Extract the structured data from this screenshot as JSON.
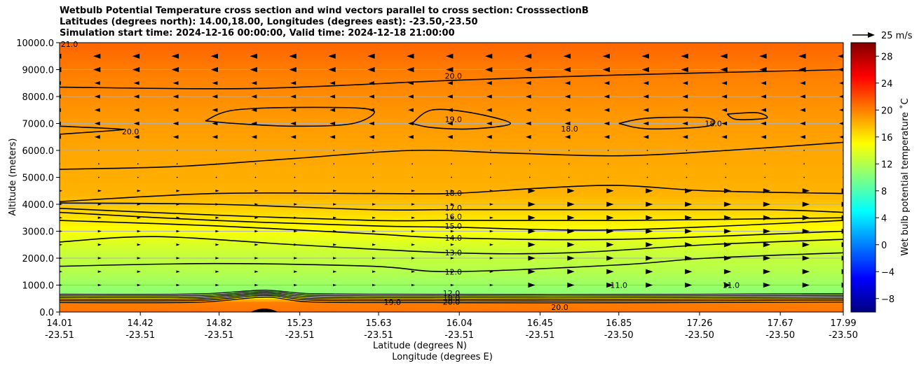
{
  "title_lines": [
    "Wetbulb Potential Temperature cross section and wind vectors parallel to cross section: CrosssectionB",
    "Latitudes (degrees north): 14.00,18.00, Longitudes (degrees east): -23.50,-23.50",
    "Simulation start time: 2024-12-16 00:00:00, Valid time: 2024-12-18 21:00:00"
  ],
  "quiver_key": "25 m/s",
  "chart_data": {
    "type": "heatmap",
    "title": "Wetbulb Potential Temperature cross section and wind vectors parallel to cross section: CrosssectionB",
    "ylabel": "Altitude (meters)",
    "xlabel_lines": [
      "Latitude (degrees N)",
      "Longitude (degrees E)"
    ],
    "ylim": [
      0,
      10000
    ],
    "xlim": [
      14.01,
      17.99
    ],
    "grid": "horizontal",
    "x_ticks": [
      {
        "lat": "14.01",
        "lon": "-23.51",
        "x": 14.01
      },
      {
        "lat": "14.42",
        "lon": "-23.51",
        "x": 14.42
      },
      {
        "lat": "14.82",
        "lon": "-23.51",
        "x": 14.82
      },
      {
        "lat": "15.23",
        "lon": "-23.51",
        "x": 15.23
      },
      {
        "lat": "15.63",
        "lon": "-23.51",
        "x": 15.63
      },
      {
        "lat": "16.04",
        "lon": "-23.51",
        "x": 16.04
      },
      {
        "lat": "16.45",
        "lon": "-23.51",
        "x": 16.45
      },
      {
        "lat": "16.85",
        "lon": "-23.50",
        "x": 16.85
      },
      {
        "lat": "17.26",
        "lon": "-23.50",
        "x": 17.26
      },
      {
        "lat": "17.67",
        "lon": "-23.50",
        "x": 17.67
      },
      {
        "lat": "17.99",
        "lon": "-23.50",
        "x": 17.99
      }
    ],
    "y_ticks": [
      {
        "label": "0.0",
        "value": 0
      },
      {
        "label": "1000.0",
        "value": 1000
      },
      {
        "label": "2000.0",
        "value": 2000
      },
      {
        "label": "3000.0",
        "value": 3000
      },
      {
        "label": "4000.0",
        "value": 4000
      },
      {
        "label": "5000.0",
        "value": 5000
      },
      {
        "label": "6000.0",
        "value": 6000
      },
      {
        "label": "7000.0",
        "value": 7000
      },
      {
        "label": "8000.0",
        "value": 8000
      },
      {
        "label": "9000.0",
        "value": 9000
      },
      {
        "label": "10000.0",
        "value": 10000
      }
    ],
    "colorbar": {
      "label": "Wet bulb potential temperature $^\\circ$C",
      "label_display": "Wet bulb potential temperature ˚C",
      "range": [
        -10,
        30
      ],
      "colormap": "jet",
      "ticks": [
        {
          "label": "−8",
          "value": -8
        },
        {
          "label": "−4",
          "value": -4
        },
        {
          "label": "0",
          "value": 0
        },
        {
          "label": "4",
          "value": 4
        },
        {
          "label": "8",
          "value": 8
        },
        {
          "label": "12",
          "value": 12
        },
        {
          "label": "16",
          "value": 16
        },
        {
          "label": "20",
          "value": 20
        },
        {
          "label": "24",
          "value": 24
        },
        {
          "label": "28",
          "value": 28
        }
      ]
    },
    "profile": [
      {
        "alt": 0,
        "temp": 20.5
      },
      {
        "alt": 400,
        "temp": 20.0
      },
      {
        "alt": 700,
        "temp": 10.5
      },
      {
        "alt": 1000,
        "temp": 11.0
      },
      {
        "alt": 1500,
        "temp": 12.0
      },
      {
        "alt": 2300,
        "temp": 13.0
      },
      {
        "alt": 2700,
        "temp": 14.0
      },
      {
        "alt": 3100,
        "temp": 15.0
      },
      {
        "alt": 3500,
        "temp": 16.0
      },
      {
        "alt": 3900,
        "temp": 17.0
      },
      {
        "alt": 4400,
        "temp": 18.0
      },
      {
        "alt": 6000,
        "temp": 18.5
      },
      {
        "alt": 7200,
        "temp": 19.0
      },
      {
        "alt": 8800,
        "temp": 20.0
      },
      {
        "alt": 10000,
        "temp": 21.0
      }
    ],
    "contours": [
      {
        "level": "12.0",
        "points": [
          [
            14.01,
            1700
          ],
          [
            14.8,
            1800
          ],
          [
            15.6,
            1700
          ],
          [
            16.0,
            1500
          ],
          [
            16.85,
            1750
          ],
          [
            17.3,
            2000
          ],
          [
            17.99,
            2200
          ]
        ]
      },
      {
        "level": "13.0",
        "points": [
          [
            14.01,
            2600
          ],
          [
            14.5,
            2800
          ],
          [
            15.2,
            2500
          ],
          [
            16.0,
            2200
          ],
          [
            16.6,
            2200
          ],
          [
            17.3,
            2500
          ],
          [
            17.99,
            2700
          ]
        ]
      },
      {
        "level": "14.0",
        "points": [
          [
            14.01,
            3400
          ],
          [
            14.8,
            3200
          ],
          [
            15.6,
            2900
          ],
          [
            16.0,
            2750
          ],
          [
            16.85,
            2700
          ],
          [
            17.99,
            3000
          ]
        ]
      },
      {
        "level": "15.0",
        "points": [
          [
            14.01,
            3700
          ],
          [
            14.8,
            3400
          ],
          [
            15.6,
            3200
          ],
          [
            16.0,
            3150
          ],
          [
            16.85,
            3050
          ],
          [
            17.99,
            3400
          ]
        ]
      },
      {
        "level": "16.0",
        "points": [
          [
            14.01,
            3850
          ],
          [
            14.8,
            3600
          ],
          [
            15.6,
            3400
          ],
          [
            16.0,
            3400
          ],
          [
            16.85,
            3400
          ],
          [
            17.99,
            3500
          ]
        ]
      },
      {
        "level": "17.0",
        "points": [
          [
            14.01,
            4050
          ],
          [
            14.8,
            4000
          ],
          [
            15.6,
            3800
          ],
          [
            16.0,
            3800
          ],
          [
            16.85,
            3800
          ],
          [
            17.6,
            3800
          ],
          [
            17.99,
            3700
          ]
        ]
      },
      {
        "level": "18.0",
        "points": [
          [
            14.01,
            4100
          ],
          [
            14.8,
            4400
          ],
          [
            15.6,
            4400
          ],
          [
            16.0,
            4400
          ],
          [
            16.45,
            4600
          ],
          [
            16.85,
            4700
          ],
          [
            17.3,
            4500
          ],
          [
            17.99,
            4400
          ]
        ]
      },
      {
        "level": "19.0",
        "points": [
          [
            14.01,
            5300
          ],
          [
            14.6,
            5400
          ],
          [
            15.2,
            5700
          ],
          [
            15.8,
            6000
          ],
          [
            16.3,
            5900
          ],
          [
            16.85,
            5800
          ],
          [
            17.4,
            6000
          ],
          [
            17.99,
            6300
          ]
        ]
      },
      {
        "level": "20.0",
        "points": [
          [
            14.01,
            8350
          ],
          [
            15.0,
            8300
          ],
          [
            16.0,
            8600
          ],
          [
            16.85,
            8800
          ],
          [
            17.99,
            9000
          ]
        ]
      }
    ],
    "contour_label_points": [
      {
        "text": "20.0",
        "x": 16.01,
        "alt": 8770
      },
      {
        "text": "19.0",
        "x": 16.01,
        "alt": 7150
      },
      {
        "text": "18.0",
        "x": 16.01,
        "alt": 4420
      },
      {
        "text": "17.0",
        "x": 16.01,
        "alt": 3870
      },
      {
        "text": "16.0",
        "x": 16.01,
        "alt": 3540
      },
      {
        "text": "15.0",
        "x": 16.01,
        "alt": 3190
      },
      {
        "text": "14.0",
        "x": 16.01,
        "alt": 2750
      },
      {
        "text": "13.0",
        "x": 16.01,
        "alt": 2210
      },
      {
        "text": "12.0",
        "x": 16.01,
        "alt": 1500
      },
      {
        "text": "20.0",
        "x": 14.37,
        "alt": 6700
      },
      {
        "text": "18.0",
        "x": 16.6,
        "alt": 6800
      },
      {
        "text": "18.0",
        "x": 17.33,
        "alt": 7000
      },
      {
        "text": "11.0",
        "x": 16.85,
        "alt": 1000
      },
      {
        "text": "11.0",
        "x": 17.42,
        "alt": 1000
      },
      {
        "text": "19.0",
        "x": 15.7,
        "alt": 360
      },
      {
        "text": "20.0",
        "x": 16.55,
        "alt": 180
      },
      {
        "text": "21.0",
        "x": 14.06,
        "alt": 9950
      },
      {
        "text": "12.0",
        "x": 16.0,
        "alt": 700
      },
      {
        "text": "18.0",
        "x": 16.0,
        "alt": 520
      },
      {
        "text": "20.0",
        "x": 16.0,
        "alt": 380
      }
    ]
  }
}
